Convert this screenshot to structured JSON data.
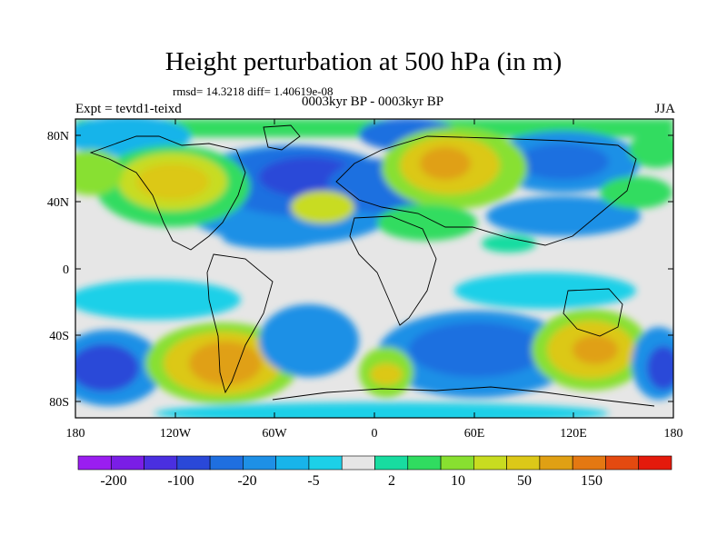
{
  "title": "Height perturbation at 500 hPa (in m)",
  "stats": "rmsd= 14.3218 diff= 1.40619e-08",
  "subtitle": "0003kyr BP - 0003kyr BP",
  "expt": "Expt = tevtd1-teixd",
  "season": "JJA",
  "lat_ticks": [
    "80N",
    "40N",
    "0",
    "40S",
    "80S"
  ],
  "lon_ticks": [
    "180",
    "120W",
    "60W",
    "0",
    "60E",
    "120E",
    "180"
  ],
  "colorbar": {
    "colors": [
      "#9a1ef0",
      "#7a1ee6",
      "#4a2fe0",
      "#2a48d8",
      "#1f6fe0",
      "#1e90e6",
      "#18b4ea",
      "#1cd0e8",
      "#e6e6e6",
      "#18dca0",
      "#30dc60",
      "#88e030",
      "#c8dc20",
      "#dcc818",
      "#e0a014",
      "#e47812",
      "#e44a10",
      "#e41a0c"
    ],
    "labels": [
      "-200",
      "-100",
      "-20",
      "-5",
      "2",
      "10",
      "50",
      "150"
    ]
  }
}
